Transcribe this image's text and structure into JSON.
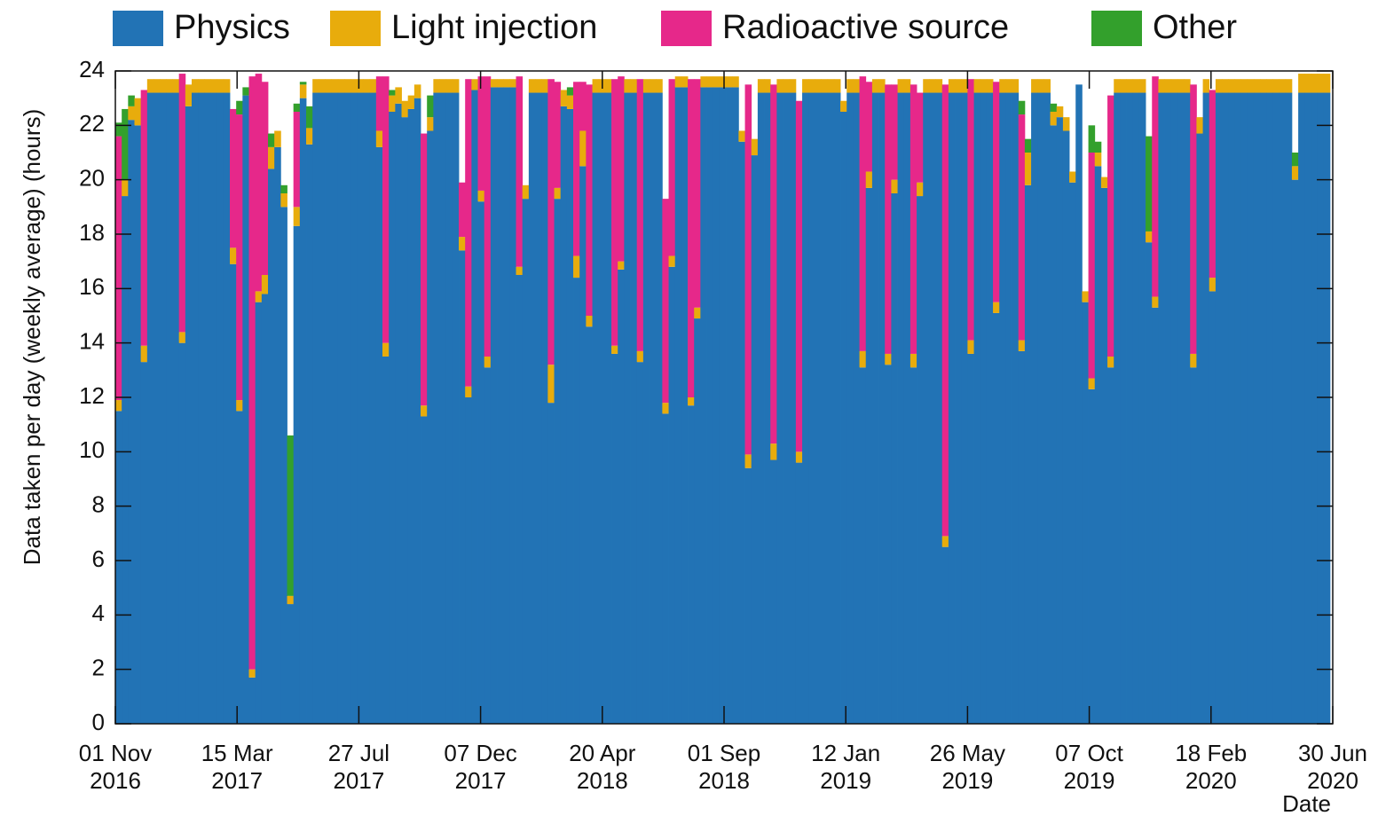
{
  "chart_data": {
    "type": "stacked_histogram",
    "ylabel": "Data taken per day (weekly average) (hours)",
    "xlabel": "Date",
    "ylim": [
      0,
      24
    ],
    "yticks": [
      0,
      2,
      4,
      6,
      8,
      10,
      12,
      14,
      16,
      18,
      20,
      22,
      24
    ],
    "xlim": [
      0,
      1340
    ],
    "xticks": [
      {
        "value": 0,
        "label": "01 Nov\n2016"
      },
      {
        "value": 134,
        "label": "15 Mar\n2017"
      },
      {
        "value": 268,
        "label": "27 Jul\n2017"
      },
      {
        "value": 402,
        "label": "07 Dec\n2017"
      },
      {
        "value": 536,
        "label": "20 Apr\n2018"
      },
      {
        "value": 670,
        "label": "01 Sep\n2018"
      },
      {
        "value": 804,
        "label": "12 Jan\n2019"
      },
      {
        "value": 938,
        "label": "26 May\n2019"
      },
      {
        "value": 1072,
        "label": "07 Oct\n2019"
      },
      {
        "value": 1206,
        "label": "18 Feb\n2020"
      },
      {
        "value": 1340,
        "label": "30 Jun\n2020"
      }
    ],
    "grid": false,
    "legend": "top",
    "bins": [
      0,
      7,
      14,
      21,
      28,
      35,
      42,
      49,
      56,
      63,
      70,
      77,
      84,
      91,
      98,
      105,
      112,
      119,
      126,
      133,
      140,
      147,
      154,
      161,
      168,
      175,
      182,
      189,
      196,
      203,
      210,
      217,
      224,
      231,
      238,
      245,
      252,
      259,
      266,
      273,
      280,
      287,
      294,
      301,
      308,
      315,
      322,
      329,
      336,
      343,
      350,
      357,
      364,
      371,
      378,
      385,
      392,
      399,
      406,
      413,
      420,
      427,
      434,
      441,
      448,
      455,
      462,
      469,
      476,
      483,
      490,
      497,
      504,
      511,
      518,
      525,
      532,
      539,
      546,
      553,
      560,
      567,
      574,
      581,
      588,
      595,
      602,
      609,
      616,
      623,
      630,
      637,
      644,
      651,
      658,
      665,
      672,
      679,
      686,
      693,
      700,
      707,
      714,
      721,
      728,
      735,
      742,
      749,
      756,
      763,
      770,
      777,
      784,
      791,
      798,
      805,
      812,
      819,
      826,
      833,
      840,
      847,
      854,
      861,
      868,
      875,
      882,
      889,
      896,
      903,
      910,
      917,
      924,
      931,
      938,
      945,
      952,
      959,
      966,
      973,
      980,
      987,
      994,
      1001,
      1008,
      1015,
      1022,
      1029,
      1036,
      1043,
      1050,
      1057,
      1064,
      1071,
      1078,
      1085,
      1092,
      1099,
      1106,
      1113,
      1120,
      1127,
      1134,
      1141,
      1148,
      1155,
      1162,
      1169,
      1176,
      1183,
      1190,
      1197,
      1204,
      1211,
      1218,
      1225,
      1232,
      1239,
      1246,
      1253,
      1260,
      1267,
      1274,
      1281,
      1288,
      1295,
      1302,
      1309,
      1316,
      1323,
      1330,
      1337
    ],
    "series": [
      {
        "name": "Physics",
        "color": "#2273b5",
        "values": [
          11.5,
          19.4,
          22.2,
          22.0,
          13.3,
          23.2,
          23.2,
          23.2,
          23.2,
          23.2,
          14.0,
          22.7,
          23.2,
          23.2,
          23.2,
          23.2,
          23.2,
          23.2,
          16.9,
          11.5,
          23.1,
          1.7,
          15.5,
          15.8,
          20.4,
          21.2,
          19.0,
          4.4,
          18.3,
          23.0,
          21.3,
          23.2,
          23.2,
          23.2,
          23.2,
          23.2,
          23.2,
          23.2,
          23.2,
          23.2,
          23.2,
          21.2,
          13.5,
          22.5,
          22.8,
          22.3,
          22.6,
          23.0,
          11.3,
          21.8,
          23.2,
          23.2,
          23.2,
          23.2,
          17.4,
          12.0,
          23.3,
          19.2,
          13.1,
          23.4,
          23.4,
          23.4,
          23.4,
          16.5,
          19.3,
          23.2,
          23.2,
          23.2,
          11.8,
          19.3,
          22.7,
          22.6,
          16.4,
          20.5,
          14.6,
          23.2,
          23.2,
          23.2,
          13.6,
          16.7,
          23.2,
          23.2,
          13.3,
          23.2,
          23.2,
          23.2,
          11.4,
          16.8,
          23.4,
          23.4,
          11.7,
          14.9,
          23.4,
          23.4,
          23.4,
          23.4,
          23.4,
          23.4,
          21.4,
          9.4,
          20.9,
          23.2,
          23.2,
          9.7,
          23.2,
          23.2,
          23.2,
          9.6,
          23.2,
          23.2,
          23.2,
          23.2,
          23.2,
          23.2,
          22.5,
          23.2,
          23.2,
          13.1,
          19.7,
          23.2,
          23.2,
          13.2,
          19.5,
          23.2,
          23.2,
          13.1,
          19.4,
          23.2,
          23.2,
          23.2,
          6.5,
          23.2,
          23.2,
          23.2,
          13.6,
          23.2,
          23.2,
          23.2,
          15.1,
          23.2,
          23.2,
          23.2,
          13.7,
          19.8,
          23.2,
          23.2,
          23.2,
          22.0,
          22.3,
          21.8,
          19.9,
          23.5,
          15.5,
          12.3,
          20.5,
          19.7,
          13.1,
          23.2,
          23.2,
          23.2,
          23.2,
          23.2,
          17.7,
          15.3,
          23.2,
          23.2,
          23.2,
          23.2,
          23.2,
          13.1,
          21.7,
          23.2,
          15.9,
          23.2,
          23.2,
          23.2,
          23.2,
          23.2,
          23.2,
          23.2,
          23.2,
          23.2,
          23.2,
          23.2,
          23.2,
          20.0,
          23.2,
          23.2,
          23.2,
          23.2,
          23.2
        ]
      },
      {
        "name": "Light injection",
        "color": "#e8ac0c",
        "values": [
          0.4,
          0.6,
          0.5,
          1.0,
          0.6,
          0.5,
          0.5,
          0.5,
          0.5,
          0.5,
          0.4,
          0.8,
          0.5,
          0.5,
          0.5,
          0.5,
          0.5,
          0.5,
          0.6,
          0.4,
          0,
          0.3,
          0.4,
          0.7,
          0.8,
          0.6,
          0.5,
          0.3,
          0.7,
          0.5,
          0.6,
          0.5,
          0.5,
          0.5,
          0.5,
          0.5,
          0.5,
          0.5,
          0.5,
          0.5,
          0.5,
          0.6,
          0.5,
          0.6,
          0.6,
          0.6,
          0.5,
          0.5,
          0.4,
          0.5,
          0.5,
          0.5,
          0.5,
          0.5,
          0.5,
          0.4,
          0.4,
          0.4,
          0.4,
          0.3,
          0.3,
          0.3,
          0.3,
          0.3,
          0.5,
          0.5,
          0.5,
          0.5,
          1.4,
          0.4,
          0.6,
          0.5,
          0.8,
          1.3,
          0.4,
          0.5,
          0.5,
          0.5,
          0.3,
          0.3,
          0.5,
          0.5,
          0.4,
          0.5,
          0.5,
          0.5,
          0.4,
          0.4,
          0.4,
          0.4,
          0.3,
          0.4,
          0.4,
          0.4,
          0.4,
          0.4,
          0.4,
          0.4,
          0.4,
          0.5,
          0.6,
          0.5,
          0.5,
          0.6,
          0.5,
          0.5,
          0.5,
          0.4,
          0.5,
          0.5,
          0.5,
          0.5,
          0.5,
          0.5,
          0.4,
          0.5,
          0.5,
          0.6,
          0.6,
          0.5,
          0.5,
          0.4,
          0.5,
          0.5,
          0.5,
          0.5,
          0.5,
          0.5,
          0.5,
          0.5,
          0.4,
          0.5,
          0.5,
          0.5,
          0.5,
          0.5,
          0.5,
          0.5,
          0.4,
          0.5,
          0.5,
          0.5,
          0.4,
          1.2,
          0.5,
          0.5,
          0.5,
          0.5,
          0.4,
          0.5,
          0.4,
          0,
          0.4,
          0.4,
          0.5,
          0.4,
          0.4,
          0.5,
          0.5,
          0.5,
          0.5,
          0.5,
          0.4,
          0.4,
          0.5,
          0.5,
          0.5,
          0.5,
          0.5,
          0.5,
          0.6,
          0.5,
          0.5,
          0.5,
          0.5,
          0.5,
          0.5,
          0.5,
          0.5,
          0.5,
          0.5,
          0.5,
          0.5,
          0.5,
          0.5,
          0.5,
          0.7,
          0.7,
          0.7,
          0.7,
          0.7
        ]
      },
      {
        "name": "Radioactive source",
        "color": "#e6288a",
        "values": [
          9.7,
          0,
          0,
          0,
          9.4,
          0,
          0,
          0,
          0,
          0,
          9.5,
          0,
          0,
          0,
          0,
          0,
          0,
          0,
          5.1,
          10.5,
          0,
          21.8,
          8.0,
          7.1,
          0,
          0,
          0,
          0,
          3.5,
          0,
          0,
          0,
          0,
          0,
          0,
          0,
          0,
          0,
          0,
          0,
          0,
          2.0,
          9.8,
          0,
          0,
          0,
          0,
          0,
          10.0,
          0,
          0,
          0,
          0,
          0,
          2.0,
          11.3,
          0,
          4.2,
          10.3,
          0,
          0,
          0,
          0,
          7.0,
          0,
          0,
          0,
          0,
          10.5,
          3.9,
          0,
          0,
          6.4,
          1.8,
          8.5,
          0,
          0,
          0,
          9.8,
          6.8,
          0,
          0,
          10.0,
          0,
          0,
          0,
          7.5,
          6.5,
          0,
          0,
          11.7,
          8.4,
          0,
          0,
          0,
          0,
          0,
          0,
          0,
          13.6,
          0,
          0,
          0,
          13.2,
          0,
          0,
          0,
          12.9,
          0,
          0,
          0,
          0,
          0,
          0,
          0,
          0,
          0,
          10.1,
          3.3,
          0,
          0,
          9.9,
          3.5,
          0,
          0,
          9.9,
          3.3,
          0,
          0,
          0,
          16.6,
          0,
          0,
          0,
          9.6,
          0,
          0,
          0,
          8.1,
          0,
          0,
          0,
          8.3,
          0,
          0,
          0,
          0,
          0,
          0,
          0,
          0,
          0,
          0,
          8.3,
          0,
          0,
          9.6,
          0,
          0,
          0,
          0,
          0,
          0,
          8.1,
          0,
          0,
          0,
          0,
          0,
          9.9,
          0,
          0,
          6.9,
          0,
          0,
          0,
          0,
          0,
          0,
          0,
          0,
          0,
          0,
          0,
          0,
          0,
          0,
          0,
          0,
          0,
          0
        ]
      },
      {
        "name": "Other",
        "color": "#33a02c",
        "values": [
          0.5,
          2.6,
          0.4,
          0,
          0,
          0,
          0,
          0,
          0,
          0,
          0,
          0,
          0,
          0,
          0,
          0,
          0,
          0,
          0,
          0.5,
          0.3,
          0,
          0,
          0,
          0.5,
          0,
          0.3,
          5.9,
          0.3,
          0.1,
          0.8,
          0,
          0,
          0,
          0,
          0,
          0,
          0,
          0,
          0,
          0,
          0,
          0,
          0.2,
          0,
          0,
          0,
          0,
          0,
          0.8,
          0,
          0,
          0,
          0,
          0,
          0,
          0,
          0,
          0,
          0,
          0,
          0,
          0,
          0,
          0,
          0,
          0,
          0,
          0,
          0,
          0,
          0.3,
          0,
          0,
          0,
          0,
          0,
          0,
          0,
          0,
          0,
          0,
          0,
          0,
          0,
          0,
          0,
          0,
          0,
          0,
          0,
          0,
          0,
          0,
          0,
          0,
          0,
          0,
          0,
          0,
          0,
          0,
          0,
          0,
          0,
          0,
          0,
          0,
          0,
          0,
          0,
          0,
          0,
          0,
          0,
          0,
          0,
          0,
          0,
          0,
          0,
          0,
          0,
          0,
          0,
          0,
          0,
          0,
          0,
          0,
          0,
          0,
          0,
          0,
          0,
          0,
          0,
          0,
          0,
          0,
          0,
          0,
          0.5,
          0.5,
          0,
          0,
          0,
          0.3,
          0,
          0,
          0,
          0,
          0,
          1.0,
          0.4,
          0,
          0,
          0,
          0,
          0,
          0,
          0,
          3.5,
          0,
          0,
          0,
          0,
          0,
          0,
          0,
          0,
          0,
          0,
          0,
          0,
          0,
          0,
          0,
          0,
          0,
          0,
          0,
          0,
          0,
          0,
          0.5,
          0,
          0,
          0,
          0,
          0
        ]
      }
    ]
  }
}
